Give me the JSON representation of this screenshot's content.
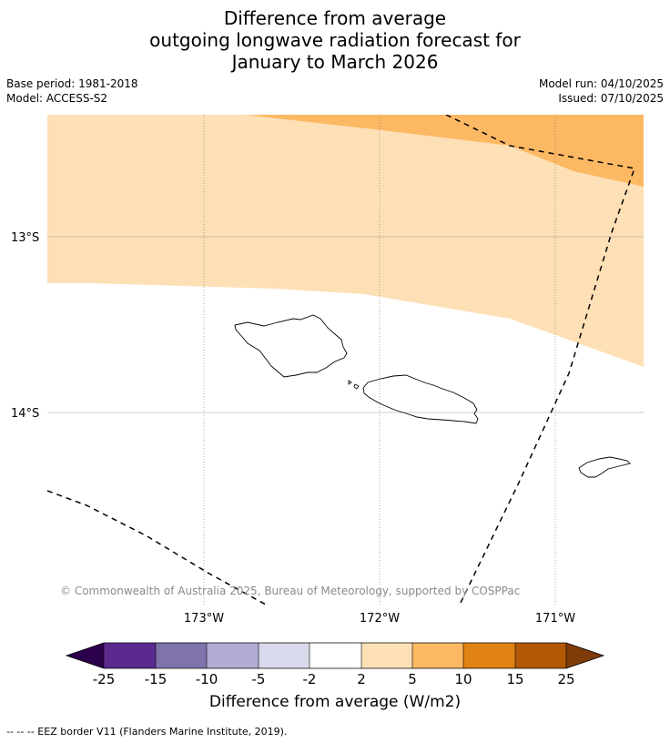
{
  "title": {
    "line1": "Difference from average",
    "line2": "outgoing longwave radiation forecast for",
    "line3": "January to March 2026"
  },
  "meta": {
    "base_period": "Base period: 1981-2018",
    "model": "Model: ACCESS-S2",
    "model_run": "Model run: 04/10/2025",
    "issued": "Issued: 07/10/2025"
  },
  "map": {
    "lat_labels": [
      "13°S",
      "14°S"
    ],
    "lon_labels": [
      "173°W",
      "172°W",
      "171°W"
    ],
    "copyright": "© Commonwealth of Australia 2025, Bureau of Meteorology, supported by COSPPac"
  },
  "colorbar": {
    "ticks": [
      "-25",
      "-15",
      "-10",
      "-5",
      "-2",
      "2",
      "5",
      "10",
      "15",
      "25"
    ],
    "colors": [
      "#2d004b",
      "#5b2a8e",
      "#8073ac",
      "#b2abd2",
      "#d8daeb",
      "#ffffff",
      "#fee0b6",
      "#fdb863",
      "#e08214",
      "#b35806",
      "#7f3b08"
    ],
    "label": "Difference from average (W/m2)"
  },
  "footer": {
    "eez_legend": "--  --  -- EEZ border V11 (Flanders Marine Institute, 2019)."
  }
}
